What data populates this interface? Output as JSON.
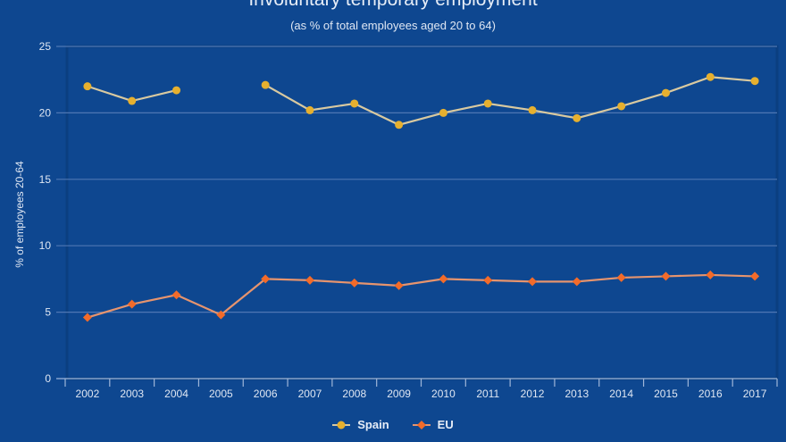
{
  "chart_data": {
    "type": "line",
    "title": "Involuntary temporary employment",
    "subtitle": "(as % of total employees aged 20 to 64)",
    "xlabel": "",
    "ylabel": "% of employees 20-64",
    "ylim": [
      0,
      25
    ],
    "yticks": [
      0,
      5,
      10,
      15,
      20,
      25
    ],
    "grid": true,
    "legend_position": "bottom",
    "categories": [
      "2002",
      "2003",
      "2004",
      "2005",
      "2006",
      "2007",
      "2008",
      "2009",
      "2010",
      "2011",
      "2012",
      "2013",
      "2014",
      "2015",
      "2016",
      "2017"
    ],
    "series": [
      {
        "name": "Spain",
        "color": "#e6b02f",
        "line_color": "#d8c9a0",
        "marker": "circle",
        "values": [
          22.0,
          20.9,
          21.7,
          null,
          22.1,
          20.2,
          20.7,
          19.1,
          20.0,
          20.7,
          20.2,
          19.6,
          20.5,
          21.5,
          22.7,
          22.4
        ]
      },
      {
        "name": "EU",
        "color": "#f26b2a",
        "line_color": "#e6946e",
        "marker": "diamond",
        "values": [
          4.6,
          5.6,
          6.3,
          4.8,
          7.5,
          7.4,
          7.2,
          7.0,
          7.5,
          7.4,
          7.3,
          7.3,
          7.6,
          7.7,
          7.8,
          7.7
        ]
      }
    ]
  },
  "colors": {
    "background": "#0e4790",
    "grid": "#4f77b3",
    "text": "#e6edf7"
  }
}
